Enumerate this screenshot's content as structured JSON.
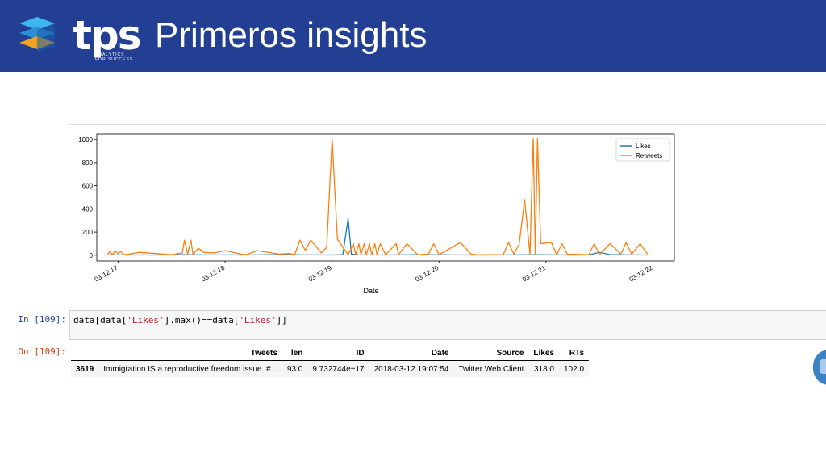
{
  "slide": {
    "logo_text": "tps",
    "logo_tagline_1": "ANALYTICS",
    "logo_tagline_2": "FOR SUCCESS",
    "title": "Primeros insights",
    "brand_color": "#223f93"
  },
  "cell_in": {
    "prompt": "In [109]:",
    "code_parts": [
      "data[data[",
      "'Likes'",
      "].max()==data[",
      "'Likes'",
      "]]"
    ]
  },
  "cell_out": {
    "prompt": "Out[109]:",
    "columns": [
      "",
      "Tweets",
      "len",
      "ID",
      "Date",
      "Source",
      "Likes",
      "RTs"
    ],
    "rows": [
      [
        "3619",
        "Immigration IS a reproductive freedom issue. #...",
        "93.0",
        "9.732744e+17",
        "2018-03-12 19:07:54",
        "Twitter Web Client",
        "318.0",
        "102.0"
      ]
    ]
  },
  "chart_data": {
    "type": "line",
    "xlabel": "Date",
    "ylabel": "",
    "xlim": [
      16.8,
      22.2
    ],
    "ylim": [
      -50,
      1050
    ],
    "x_ticks": [
      17,
      18,
      19,
      20,
      21,
      22
    ],
    "x_tick_labels": [
      "03-12 17",
      "03-12 18",
      "03-12 19",
      "03-12 20",
      "03-12 21",
      "03-12 22"
    ],
    "y_ticks": [
      0,
      200,
      400,
      600,
      800,
      1000
    ],
    "y_tick_labels": [
      "0",
      "200",
      "400",
      "600",
      "800",
      "1000"
    ],
    "legend_position": "top-right",
    "series": [
      {
        "name": "Likes",
        "color": "#1f77b4",
        "x": [
          16.9,
          17.3,
          17.6,
          17.8,
          18.2,
          18.5,
          18.8,
          19.0,
          19.1,
          19.15,
          19.18,
          19.25,
          19.5,
          19.8,
          20.1,
          20.4,
          20.7,
          20.9,
          21.2,
          21.4,
          21.5,
          21.6,
          21.8,
          21.95
        ],
        "y": [
          3,
          2,
          4,
          3,
          2,
          5,
          3,
          2,
          4,
          318,
          10,
          3,
          2,
          4,
          3,
          2,
          3,
          4,
          2,
          3,
          25,
          5,
          3,
          2
        ]
      },
      {
        "name": "Retweets",
        "color": "#ff7f0e",
        "x": [
          16.9,
          16.92,
          16.95,
          16.97,
          17.0,
          17.02,
          17.05,
          17.1,
          17.2,
          17.5,
          17.6,
          17.62,
          17.65,
          17.68,
          17.7,
          17.75,
          17.8,
          17.9,
          18.0,
          18.15,
          18.2,
          18.3,
          18.5,
          18.6,
          18.65,
          18.7,
          18.75,
          18.8,
          18.9,
          18.95,
          19.0,
          19.05,
          19.15,
          19.2,
          19.22,
          19.25,
          19.27,
          19.3,
          19.32,
          19.35,
          19.37,
          19.4,
          19.42,
          19.45,
          19.5,
          19.6,
          19.62,
          19.7,
          19.8,
          19.9,
          19.95,
          20.0,
          20.2,
          20.3,
          20.35,
          20.5,
          20.6,
          20.65,
          20.7,
          20.75,
          20.8,
          20.85,
          20.88,
          20.9,
          20.92,
          20.95,
          21.05,
          21.1,
          21.15,
          21.2,
          21.4,
          21.45,
          21.5,
          21.6,
          21.7,
          21.75,
          21.8,
          21.88,
          21.95
        ],
        "y": [
          10,
          30,
          5,
          40,
          15,
          35,
          5,
          10,
          25,
          5,
          20,
          130,
          10,
          130,
          5,
          60,
          25,
          20,
          40,
          10,
          5,
          40,
          10,
          15,
          5,
          130,
          40,
          130,
          20,
          70,
          1010,
          140,
          5,
          100,
          5,
          100,
          5,
          100,
          5,
          100,
          5,
          100,
          5,
          100,
          5,
          100,
          5,
          100,
          5,
          10,
          100,
          5,
          110,
          10,
          5,
          5,
          5,
          110,
          10,
          100,
          480,
          5,
          1010,
          5,
          1010,
          100,
          110,
          5,
          100,
          10,
          5,
          100,
          5,
          100,
          10,
          110,
          10,
          100,
          10
        ]
      }
    ]
  }
}
